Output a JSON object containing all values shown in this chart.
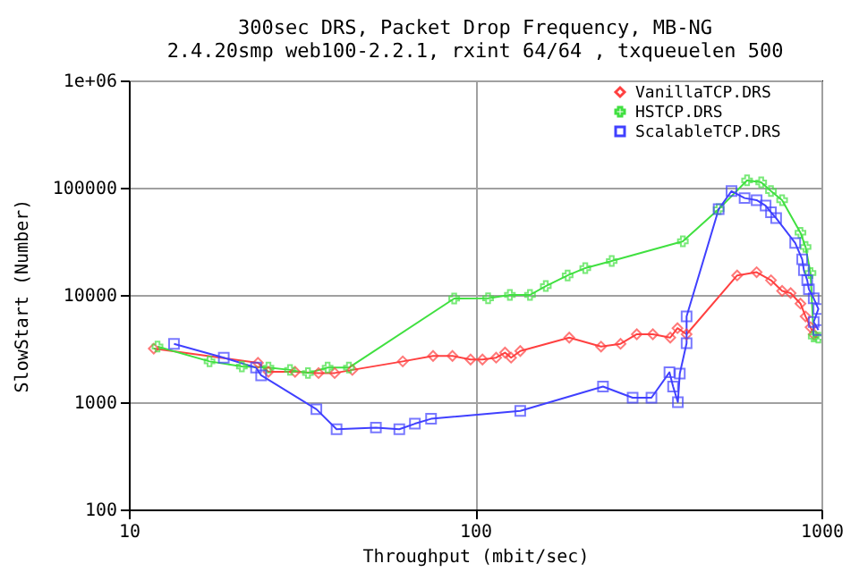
{
  "chart_data": {
    "type": "line",
    "title": "300sec DRS, Packet Drop Frequency, MB-NG",
    "subtitle": "2.4.20smp web100-2.2.1, rxint 64/64 , txqueuelen 500",
    "xlabel": "Throughput (mbit/sec)",
    "ylabel": "SlowStart (Number)",
    "log": "xy",
    "grid": true,
    "legend": "top right",
    "xlim": [
      10,
      1000
    ],
    "xticks": [
      10,
      100,
      1000
    ],
    "ylim": [
      100,
      1000000
    ],
    "yticks": [
      100,
      1000,
      10000,
      100000,
      {
        "value": 1000000,
        "label": "1e+06"
      }
    ],
    "series": [
      {
        "name": "VanillaTCP.DRS",
        "color": "#ff4040",
        "marker": "diamond",
        "x": [
          11.8,
          23.6,
          25.3,
          30.2,
          35.3,
          39.3,
          44.2,
          61.8,
          75.6,
          86,
          97,
          105,
          115,
          122,
          127,
          135,
          187,
          231,
          263,
          293,
          326,
          366,
          384,
          408,
          571,
          650,
          715,
          770,
          815,
          870,
          900,
          930,
          950
        ],
        "values": [
          3160,
          2330,
          1920,
          1920,
          1870,
          1870,
          2000,
          2400,
          2700,
          2700,
          2500,
          2500,
          2600,
          2900,
          2600,
          3000,
          4000,
          3300,
          3500,
          4300,
          4300,
          4000,
          4900,
          4300,
          15200,
          16300,
          13700,
          10900,
          10400,
          8300,
          6300,
          5000,
          4300
        ]
      },
      {
        "name": "HSTCP.DRS",
        "color": "#40e040",
        "marker": "cross",
        "x": [
          12.1,
          17.1,
          21.2,
          25.3,
          29.2,
          32.9,
          37.5,
          43.2,
          87,
          109,
          126,
          144,
          160,
          185,
          208,
          248,
          398,
          505,
          610,
          670,
          715,
          770,
          870,
          900,
          930,
          950,
          980
        ],
        "values": [
          3300,
          2400,
          2150,
          2100,
          2000,
          1870,
          2100,
          2100,
          9260,
          9300,
          10000,
          10000,
          12100,
          15200,
          17800,
          20700,
          31600,
          63000,
          117000,
          112000,
          93000,
          76500,
          38000,
          28000,
          16000,
          4100,
          4000
        ]
      },
      {
        "name": "ScalableTCP.DRS",
        "color": "#4040ff",
        "marker": "square",
        "x": [
          13.5,
          18.8,
          23.3,
          24.1,
          34.8,
          39.8,
          51.7,
          60.4,
          67,
          74.6,
          135,
          234,
          285,
          323,
          364,
          373,
          385,
          390,
          408,
          408,
          505,
          550,
          600,
          650,
          690,
          715,
          740,
          840,
          880,
          890,
          910,
          920,
          950,
          980,
          950,
          980
        ],
        "values": [
          3500,
          2600,
          2100,
          1780,
          860,
          560,
          580,
          560,
          630,
          700,
          830,
          1400,
          1100,
          1100,
          1900,
          1400,
          1000,
          1850,
          3550,
          6300,
          63000,
          93000,
          80000,
          76500,
          68000,
          59000,
          52000,
          30500,
          21500,
          17000,
          13700,
          11300,
          9300,
          7400,
          5600,
          4700
        ]
      }
    ]
  }
}
